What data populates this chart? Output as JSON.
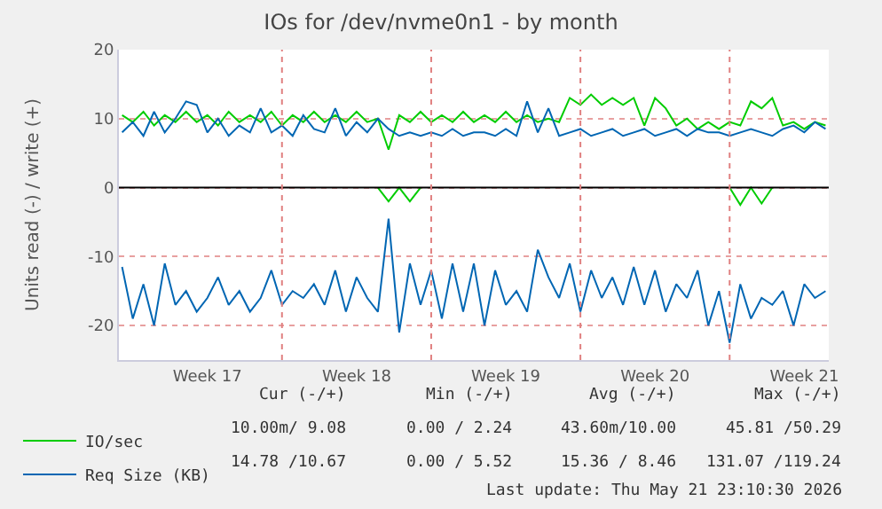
{
  "chart_data": {
    "type": "line",
    "title": "IOs for /dev/nvme0n1 - by month",
    "ylabel": "Units read (-) / write (+)",
    "categories": [
      null,
      null,
      null,
      null,
      null,
      null,
      null,
      null,
      "Week 17",
      null,
      null,
      null,
      null,
      null,
      null,
      null,
      null,
      null,
      null,
      null,
      null,
      null,
      "Week 18",
      null,
      null,
      null,
      null,
      null,
      null,
      null,
      null,
      null,
      null,
      null,
      null,
      null,
      "Week 19",
      null,
      null,
      null,
      null,
      null,
      null,
      null,
      null,
      null,
      null,
      null,
      null,
      null,
      "Week 20",
      null,
      null,
      null,
      null,
      null,
      null,
      null,
      null,
      null,
      null,
      null,
      null,
      null,
      "Week 21",
      null,
      null
    ],
    "series": [
      {
        "name": "IO/sec",
        "color": "#00cc00",
        "values": [
          10.5,
          9.5,
          11,
          9,
          10.5,
          9.5,
          11,
          9.5,
          10.5,
          9,
          11,
          9.5,
          10.5,
          9.5,
          11,
          9,
          10.5,
          9.5,
          11,
          9.5,
          10.5,
          9.5,
          11,
          9.5,
          10,
          5.5,
          10.5,
          9.5,
          11,
          9.5,
          10.5,
          9.5,
          11,
          9.5,
          10.5,
          9.5,
          11,
          9.5,
          10.5,
          9.5,
          10,
          9.5,
          13,
          12,
          13.5,
          12,
          13,
          12,
          13,
          9,
          13,
          11.5,
          9,
          10,
          8.5,
          9.5,
          8.5,
          9.5,
          9,
          12.5,
          11.5,
          13,
          9,
          9.5,
          8.5,
          9.5,
          9
        ]
      },
      {
        "color": "#00cc00",
        "values": [
          null,
          null,
          null,
          null,
          null,
          null,
          null,
          null,
          null,
          null,
          null,
          null,
          null,
          null,
          null,
          null,
          null,
          null,
          null,
          null,
          null,
          null,
          null,
          null,
          0,
          -2,
          0,
          -2,
          0,
          null,
          null,
          null,
          null,
          null,
          null,
          null,
          null,
          null,
          null,
          null,
          null,
          null,
          null,
          null,
          null,
          null,
          null,
          null,
          null,
          null,
          null,
          null,
          null,
          null,
          null,
          null,
          null,
          0,
          -2.5,
          0,
          -2.3,
          0,
          null,
          null,
          null,
          null,
          null
        ]
      },
      {
        "name": "Req Size (KB)",
        "color": "#0066b3",
        "values": [
          8,
          9.5,
          7.5,
          11,
          8,
          10,
          12.5,
          12,
          8,
          10,
          7.5,
          9,
          8,
          11.5,
          8,
          9,
          7.5,
          10.5,
          8.5,
          8,
          11.5,
          7.5,
          9.5,
          8,
          10,
          8.5,
          7.5,
          8,
          7.5,
          8,
          7.5,
          8.5,
          7.5,
          8,
          8,
          7.5,
          8.5,
          7.5,
          12.5,
          8,
          11.5,
          7.5,
          8,
          8.5,
          7.5,
          8,
          8.5,
          7.5,
          8,
          8.5,
          7.5,
          8,
          8.5,
          7.5,
          8.5,
          8,
          8,
          7.5,
          8,
          8.5,
          8,
          7.5,
          8.5,
          9,
          8,
          9.5,
          8.5
        ]
      },
      {
        "color": "#0066b3",
        "values": [
          -11.5,
          -19,
          -14,
          -20,
          -11,
          -17,
          -15,
          -18,
          -16,
          -13,
          -17,
          -15,
          -18,
          -16,
          -12,
          -17,
          -15,
          -16,
          -14,
          -17,
          -12,
          -18,
          -13,
          -16,
          -18,
          -4.5,
          -21,
          -11,
          -17,
          -12,
          -19,
          -11,
          -18,
          -11,
          -20,
          -12,
          -17,
          -15,
          -18,
          -9,
          -13,
          -16,
          -11,
          -18,
          -12,
          -16,
          -13,
          -17,
          -11.5,
          -17,
          -12,
          -18,
          -14,
          -16,
          -12,
          -20,
          -15,
          -22.5,
          -14,
          -19,
          -16,
          -17,
          -15,
          -20,
          -14,
          -16,
          -15
        ]
      }
    ],
    "ylim": [
      -25,
      20
    ],
    "yticks": [
      -20,
      -10,
      0,
      10,
      20
    ],
    "grid": "y",
    "legend": "bottom left",
    "line_style": "solid",
    "marker": "none",
    "ref_lines": [
      {
        "axis": "y",
        "value": 0,
        "color": "#000000"
      }
    ],
    "annotations": [
      "Cur (-/+)",
      "Min (-/+)",
      "Avg (-/+)",
      "Max (-/+)",
      "10.00m/ 9.08",
      "0.00 / 2.24",
      "43.60m/10.00",
      "45.81 /50.29",
      "14.78 /10.67",
      "0.00 / 5.52",
      "15.36 / 8.46",
      "131.07 /119.24",
      "Last update: Thu May 21 23:10:30 2026"
    ]
  }
}
